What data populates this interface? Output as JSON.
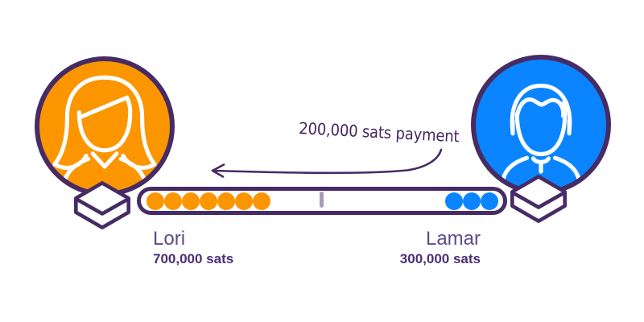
{
  "payment": {
    "label": "200,000 sats payment",
    "arrow_direction": "left"
  },
  "channel": {
    "left": {
      "name": "Lori",
      "balance": "700,000 sats",
      "dots": 7
    },
    "right": {
      "name": "Lamar",
      "balance": "300,000 sats",
      "dots": 3
    }
  },
  "colors": {
    "orange": "#FB9600",
    "blue": "#0A85FF",
    "purple": "#462B65",
    "ink": "#44285E",
    "tick": "#A79DB5",
    "name": "#5C4A8E",
    "balance": "#4B2E76"
  }
}
